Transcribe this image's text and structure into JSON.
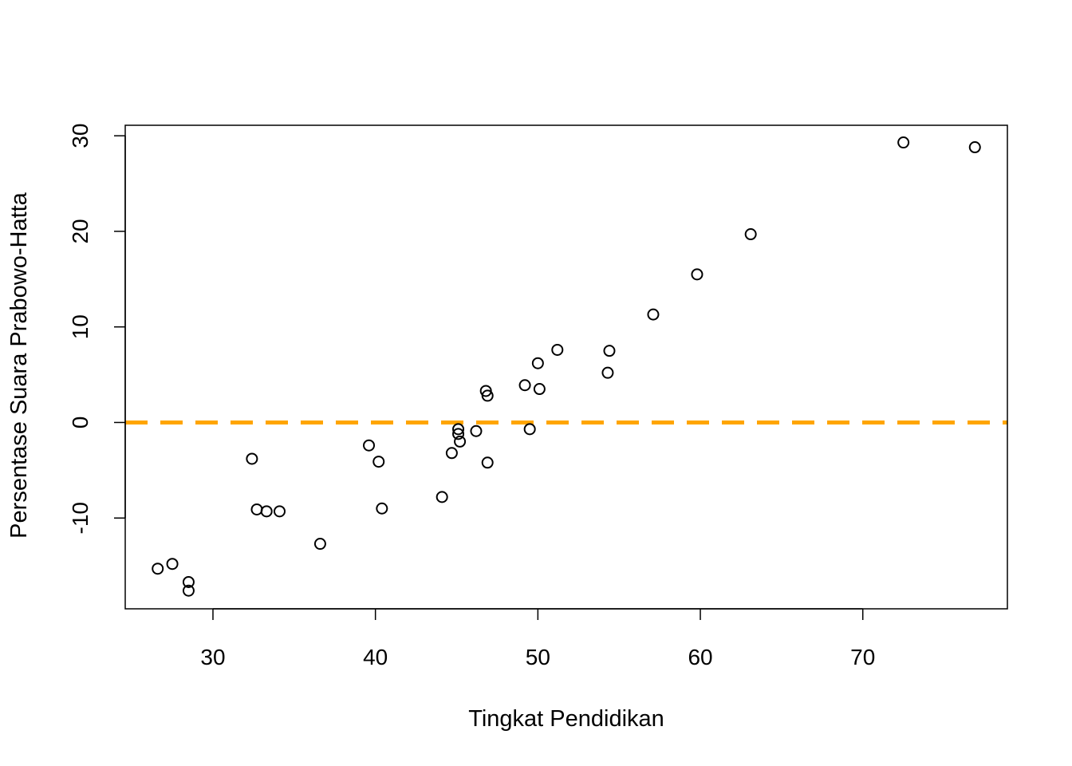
{
  "chart_data": {
    "type": "scatter",
    "title": "",
    "xlabel": "Tingkat Pendidikan",
    "ylabel": "Persentase Suara Prabowo-Hatta",
    "xlim": [
      24.6,
      78.9
    ],
    "ylim": [
      -19.5,
      31.1
    ],
    "x_ticks": [
      30,
      40,
      50,
      60,
      70
    ],
    "y_ticks": [
      -10,
      0,
      10,
      20,
      30
    ],
    "x_tick_labels": [
      "30",
      "40",
      "50",
      "60",
      "70"
    ],
    "y_tick_labels": [
      "-10",
      "0",
      "10",
      "20",
      "30"
    ],
    "grid": false,
    "marker": "open-circle",
    "reference_line": {
      "y": 0,
      "style": "dashed",
      "color": "#FFA500"
    },
    "points": [
      {
        "x": 26.6,
        "y": -15.3
      },
      {
        "x": 27.5,
        "y": -14.8
      },
      {
        "x": 28.5,
        "y": -16.7
      },
      {
        "x": 28.5,
        "y": -17.6
      },
      {
        "x": 32.4,
        "y": -3.8
      },
      {
        "x": 32.7,
        "y": -9.1
      },
      {
        "x": 33.3,
        "y": -9.3
      },
      {
        "x": 34.1,
        "y": -9.3
      },
      {
        "x": 36.6,
        "y": -12.7
      },
      {
        "x": 39.6,
        "y": -2.4
      },
      {
        "x": 40.2,
        "y": -4.1
      },
      {
        "x": 40.4,
        "y": -9.0
      },
      {
        "x": 44.1,
        "y": -7.8
      },
      {
        "x": 44.7,
        "y": -3.2
      },
      {
        "x": 45.1,
        "y": -0.7
      },
      {
        "x": 45.1,
        "y": -1.2
      },
      {
        "x": 45.2,
        "y": -2.0
      },
      {
        "x": 46.2,
        "y": -0.9
      },
      {
        "x": 46.8,
        "y": 3.3
      },
      {
        "x": 46.9,
        "y": 2.8
      },
      {
        "x": 46.9,
        "y": -4.2
      },
      {
        "x": 49.2,
        "y": 3.9
      },
      {
        "x": 49.5,
        "y": -0.7
      },
      {
        "x": 50.0,
        "y": 6.2
      },
      {
        "x": 50.1,
        "y": 3.5
      },
      {
        "x": 51.2,
        "y": 7.6
      },
      {
        "x": 54.3,
        "y": 5.2
      },
      {
        "x": 54.4,
        "y": 7.5
      },
      {
        "x": 57.1,
        "y": 11.3
      },
      {
        "x": 59.8,
        "y": 15.5
      },
      {
        "x": 63.1,
        "y": 19.7
      },
      {
        "x": 72.5,
        "y": 29.3
      },
      {
        "x": 76.9,
        "y": 28.8
      }
    ]
  }
}
